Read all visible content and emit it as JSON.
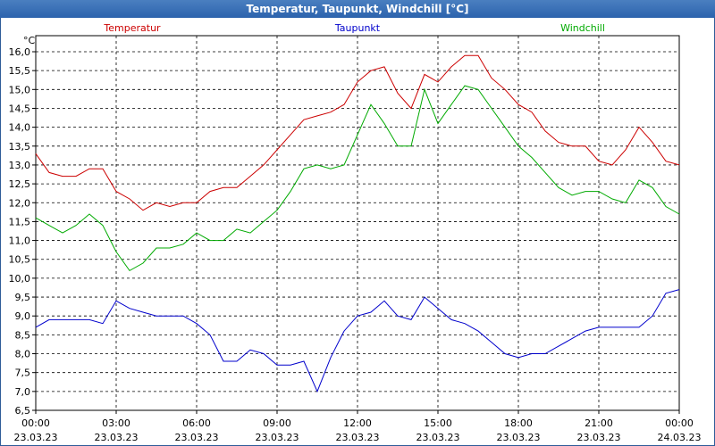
{
  "chart_data": {
    "type": "line",
    "title": "Temperatur, Taupunkt, Windchill [°C]",
    "ylabel": "°C",
    "ylim": [
      6.5,
      16.25
    ],
    "yticks": [
      "6,5",
      "7,0",
      "7,5",
      "8,0",
      "8,5",
      "9,0",
      "9,5",
      "10,0",
      "10,5",
      "11,0",
      "11,5",
      "12,0",
      "12,5",
      "13,0",
      "13,5",
      "14,0",
      "14,5",
      "15,0",
      "15,5",
      "16,0"
    ],
    "xticks": [
      {
        "time": "00:00",
        "date": "23.03.23"
      },
      {
        "time": "03:00",
        "date": "23.03.23"
      },
      {
        "time": "06:00",
        "date": "23.03.23"
      },
      {
        "time": "09:00",
        "date": "23.03.23"
      },
      {
        "time": "12:00",
        "date": "23.03.23"
      },
      {
        "time": "15:00",
        "date": "23.03.23"
      },
      {
        "time": "18:00",
        "date": "23.03.23"
      },
      {
        "time": "21:00",
        "date": "23.03.23"
      },
      {
        "time": "00:00",
        "date": "24.03.23"
      }
    ],
    "x_hours": [
      0,
      0.5,
      1,
      1.5,
      2,
      2.5,
      3,
      3.5,
      4,
      4.5,
      5,
      5.5,
      6,
      6.5,
      7,
      7.5,
      8,
      8.5,
      9,
      9.5,
      10,
      10.5,
      11,
      11.5,
      12,
      12.5,
      13,
      13.5,
      14,
      14.5,
      15,
      15.5,
      16,
      16.5,
      17,
      17.5,
      18,
      18.5,
      19,
      19.5,
      20,
      20.5,
      21,
      21.5,
      22,
      22.5,
      23,
      23.5,
      24
    ],
    "series": [
      {
        "name": "Temperatur",
        "color": "#cc0000",
        "values": [
          13.3,
          12.8,
          12.7,
          12.7,
          12.9,
          12.9,
          12.3,
          12.1,
          11.8,
          12.0,
          11.9,
          12.0,
          12.0,
          12.3,
          12.4,
          12.4,
          12.7,
          13.0,
          13.4,
          13.8,
          14.2,
          14.3,
          14.4,
          14.6,
          15.2,
          15.5,
          15.6,
          14.9,
          14.5,
          15.4,
          15.2,
          15.6,
          15.9,
          15.9,
          15.3,
          15.0,
          14.6,
          14.4,
          13.9,
          13.6,
          13.5,
          13.5,
          13.1,
          13.0,
          13.4,
          14.0,
          13.6,
          13.1,
          13.0
        ]
      },
      {
        "name": "Taupunkt",
        "color": "#0000cc",
        "values": [
          8.7,
          8.9,
          8.9,
          8.9,
          8.9,
          8.8,
          9.4,
          9.2,
          9.1,
          9.0,
          9.0,
          9.0,
          8.8,
          8.5,
          7.8,
          7.8,
          8.1,
          8.0,
          7.7,
          7.7,
          7.8,
          7.0,
          7.9,
          8.6,
          9.0,
          9.1,
          9.4,
          9.0,
          8.9,
          9.5,
          9.2,
          8.9,
          8.8,
          8.6,
          8.3,
          8.0,
          7.9,
          8.0,
          8.0,
          8.2,
          8.4,
          8.6,
          8.7,
          8.7,
          8.7,
          8.7,
          9.0,
          9.6,
          9.7
        ]
      },
      {
        "name": "Windchill",
        "color": "#00aa00",
        "values": [
          11.6,
          11.4,
          11.2,
          11.4,
          11.7,
          11.4,
          10.7,
          10.2,
          10.4,
          10.8,
          10.8,
          10.9,
          11.2,
          11.0,
          11.0,
          11.3,
          11.2,
          11.5,
          11.8,
          12.3,
          12.9,
          13.0,
          12.9,
          13.0,
          13.8,
          14.6,
          14.1,
          13.5,
          13.5,
          15.0,
          14.1,
          14.6,
          15.1,
          15.0,
          14.5,
          14.0,
          13.5,
          13.2,
          12.8,
          12.4,
          12.2,
          12.3,
          12.3,
          12.1,
          12.0,
          12.6,
          12.4,
          11.9,
          11.7
        ]
      }
    ]
  }
}
